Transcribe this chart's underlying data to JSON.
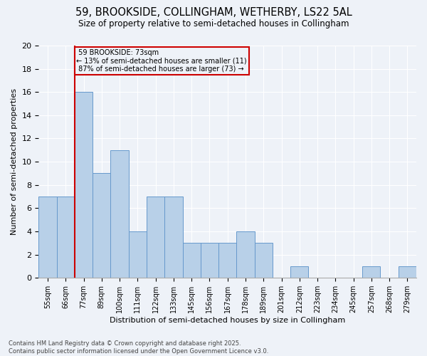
{
  "title1": "59, BROOKSIDE, COLLINGHAM, WETHERBY, LS22 5AL",
  "title2": "Size of property relative to semi-detached houses in Collingham",
  "xlabel": "Distribution of semi-detached houses by size in Collingham",
  "ylabel": "Number of semi-detached properties",
  "categories": [
    "55sqm",
    "66sqm",
    "77sqm",
    "89sqm",
    "100sqm",
    "111sqm",
    "122sqm",
    "133sqm",
    "145sqm",
    "156sqm",
    "167sqm",
    "178sqm",
    "189sqm",
    "201sqm",
    "212sqm",
    "223sqm",
    "234sqm",
    "245sqm",
    "257sqm",
    "268sqm",
    "279sqm"
  ],
  "values": [
    7,
    7,
    16,
    9,
    11,
    4,
    7,
    7,
    3,
    3,
    3,
    4,
    3,
    0,
    1,
    0,
    0,
    0,
    1,
    0,
    1
  ],
  "bar_color": "#b8d0e8",
  "bar_edge_color": "#6699cc",
  "subject_line_color": "#cc0000",
  "subject_label": "59 BROOKSIDE: 73sqm",
  "pct_smaller": "13%",
  "pct_smaller_n": 11,
  "pct_larger": "87%",
  "pct_larger_n": 73,
  "annotation_box_color": "#cc0000",
  "bg_color": "#eef2f8",
  "grid_color": "#ffffff",
  "footer1": "Contains HM Land Registry data © Crown copyright and database right 2025.",
  "footer2": "Contains public sector information licensed under the Open Government Licence v3.0.",
  "ylim": [
    0,
    20
  ],
  "yticks": [
    0,
    2,
    4,
    6,
    8,
    10,
    12,
    14,
    16,
    18,
    20
  ]
}
